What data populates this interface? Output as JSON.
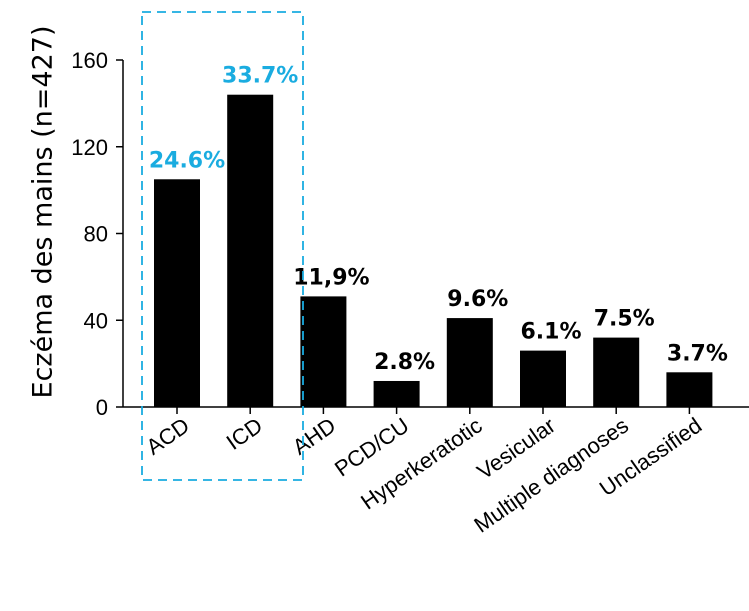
{
  "chart_data": {
    "type": "bar",
    "ylabel": "Eczéma des mains (n=427)",
    "xlabel": "",
    "ylim": [
      0,
      160
    ],
    "yticks": [
      0,
      40,
      80,
      120,
      160
    ],
    "categories": [
      "ACD",
      "ICD",
      "AHD",
      "PCD/CU",
      "Hyperkeratotic",
      "Vesicular",
      "Multiple diagnoses",
      "Unclassified"
    ],
    "values": [
      105,
      144,
      51,
      12,
      41,
      26,
      32,
      16
    ],
    "data_labels": [
      "24.6%",
      "33.7%",
      "11,9%",
      "2.8%",
      "9.6%",
      "6.1%",
      "7.5%",
      "3.7%"
    ],
    "colors": {
      "bar": "#000000",
      "highlight": "#1aace0",
      "default_label": "#000000"
    },
    "highlighted_categories": [
      "ACD",
      "ICD"
    ],
    "grid": false,
    "legend": "none"
  }
}
